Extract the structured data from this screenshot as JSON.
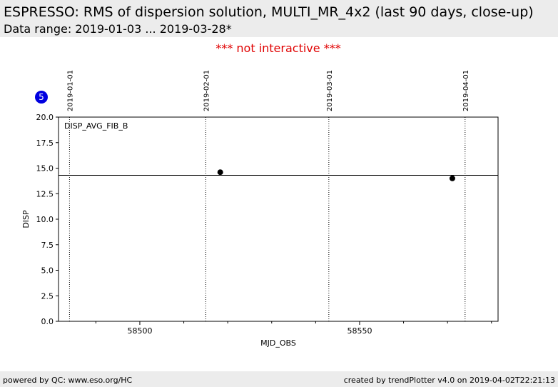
{
  "chart_data": {
    "type": "scatter",
    "title": "ESPRESSO: RMS of dispersion solution, MULTI_MR_4x2 (last 90 days, close-up)",
    "subtitle": "Data range: 2019-01-03 ... 2019-03-28*",
    "note": "*** not interactive ***",
    "badge": "5",
    "panel_label": "DISP_AVG_FIB_B",
    "x_label": "MJD_OBS",
    "y_label": "DISP",
    "x": [
      58518.3,
      58571.1
    ],
    "values": [
      14.6,
      14.0
    ],
    "color": "#000000",
    "reference_line": 14.3,
    "xlim": [
      58481.5,
      58581.5
    ],
    "xticks": [
      58500,
      58550
    ],
    "xminorticks": [
      58490,
      58510,
      58520,
      58530,
      58540,
      58560,
      58570,
      58580
    ],
    "ylim": [
      0,
      20
    ],
    "yticks": [
      {
        "value": 0,
        "label": "0.0"
      },
      2.5,
      {
        "value": 5,
        "label": "5.0"
      },
      7.5,
      {
        "value": 10,
        "label": "10.0"
      },
      12.5,
      {
        "value": 15,
        "label": "15.0"
      },
      17.5,
      {
        "value": 20,
        "label": "20.0"
      }
    ],
    "date_markers": [
      {
        "value": 58484,
        "label": "2019-01-01"
      },
      {
        "value": 58515,
        "label": "2019-02-01"
      },
      {
        "value": 58543,
        "label": "2019-03-01"
      },
      {
        "value": 58574,
        "label": "2019-04-01"
      }
    ]
  },
  "footer": {
    "left": "powered by QC: www.eso.org/HC",
    "right": "created by trendPlotter v4.0 on 2019-04-02T22:21:13"
  }
}
